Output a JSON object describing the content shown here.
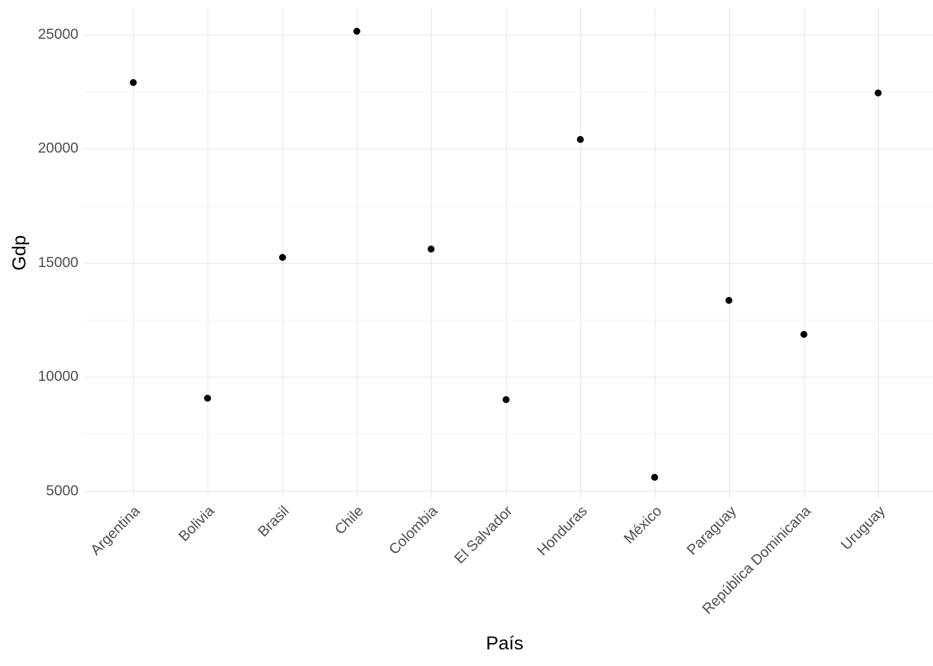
{
  "chart_data": {
    "type": "scatter",
    "title": "",
    "xlabel": "País",
    "ylabel": "Gdp",
    "categories": [
      "Argentina",
      "Bolivia",
      "Brasil",
      "Chile",
      "Colombia",
      "El Salvador",
      "Honduras",
      "México",
      "Paraguay",
      "República Dominicana",
      "Uruguay"
    ],
    "values": [
      22900,
      9050,
      15250,
      25150,
      15600,
      9000,
      20400,
      5600,
      13350,
      11850,
      22450
    ],
    "y_ticks": [
      5000,
      10000,
      15000,
      20000,
      25000
    ],
    "y_minor_gridlines": [
      7500,
      12500,
      17500,
      22500
    ],
    "ylim": [
      4712,
      26186
    ],
    "grid": "major and minor horizontal, major vertical per category",
    "legend": "none",
    "point_color": "#000000",
    "grid_major_color": "#e6e6e6",
    "grid_minor_color": "#f2f2f2",
    "axis_text_color": "#4d4d4d",
    "axis_title_color": "#000000",
    "background_color": "#ffffff"
  }
}
